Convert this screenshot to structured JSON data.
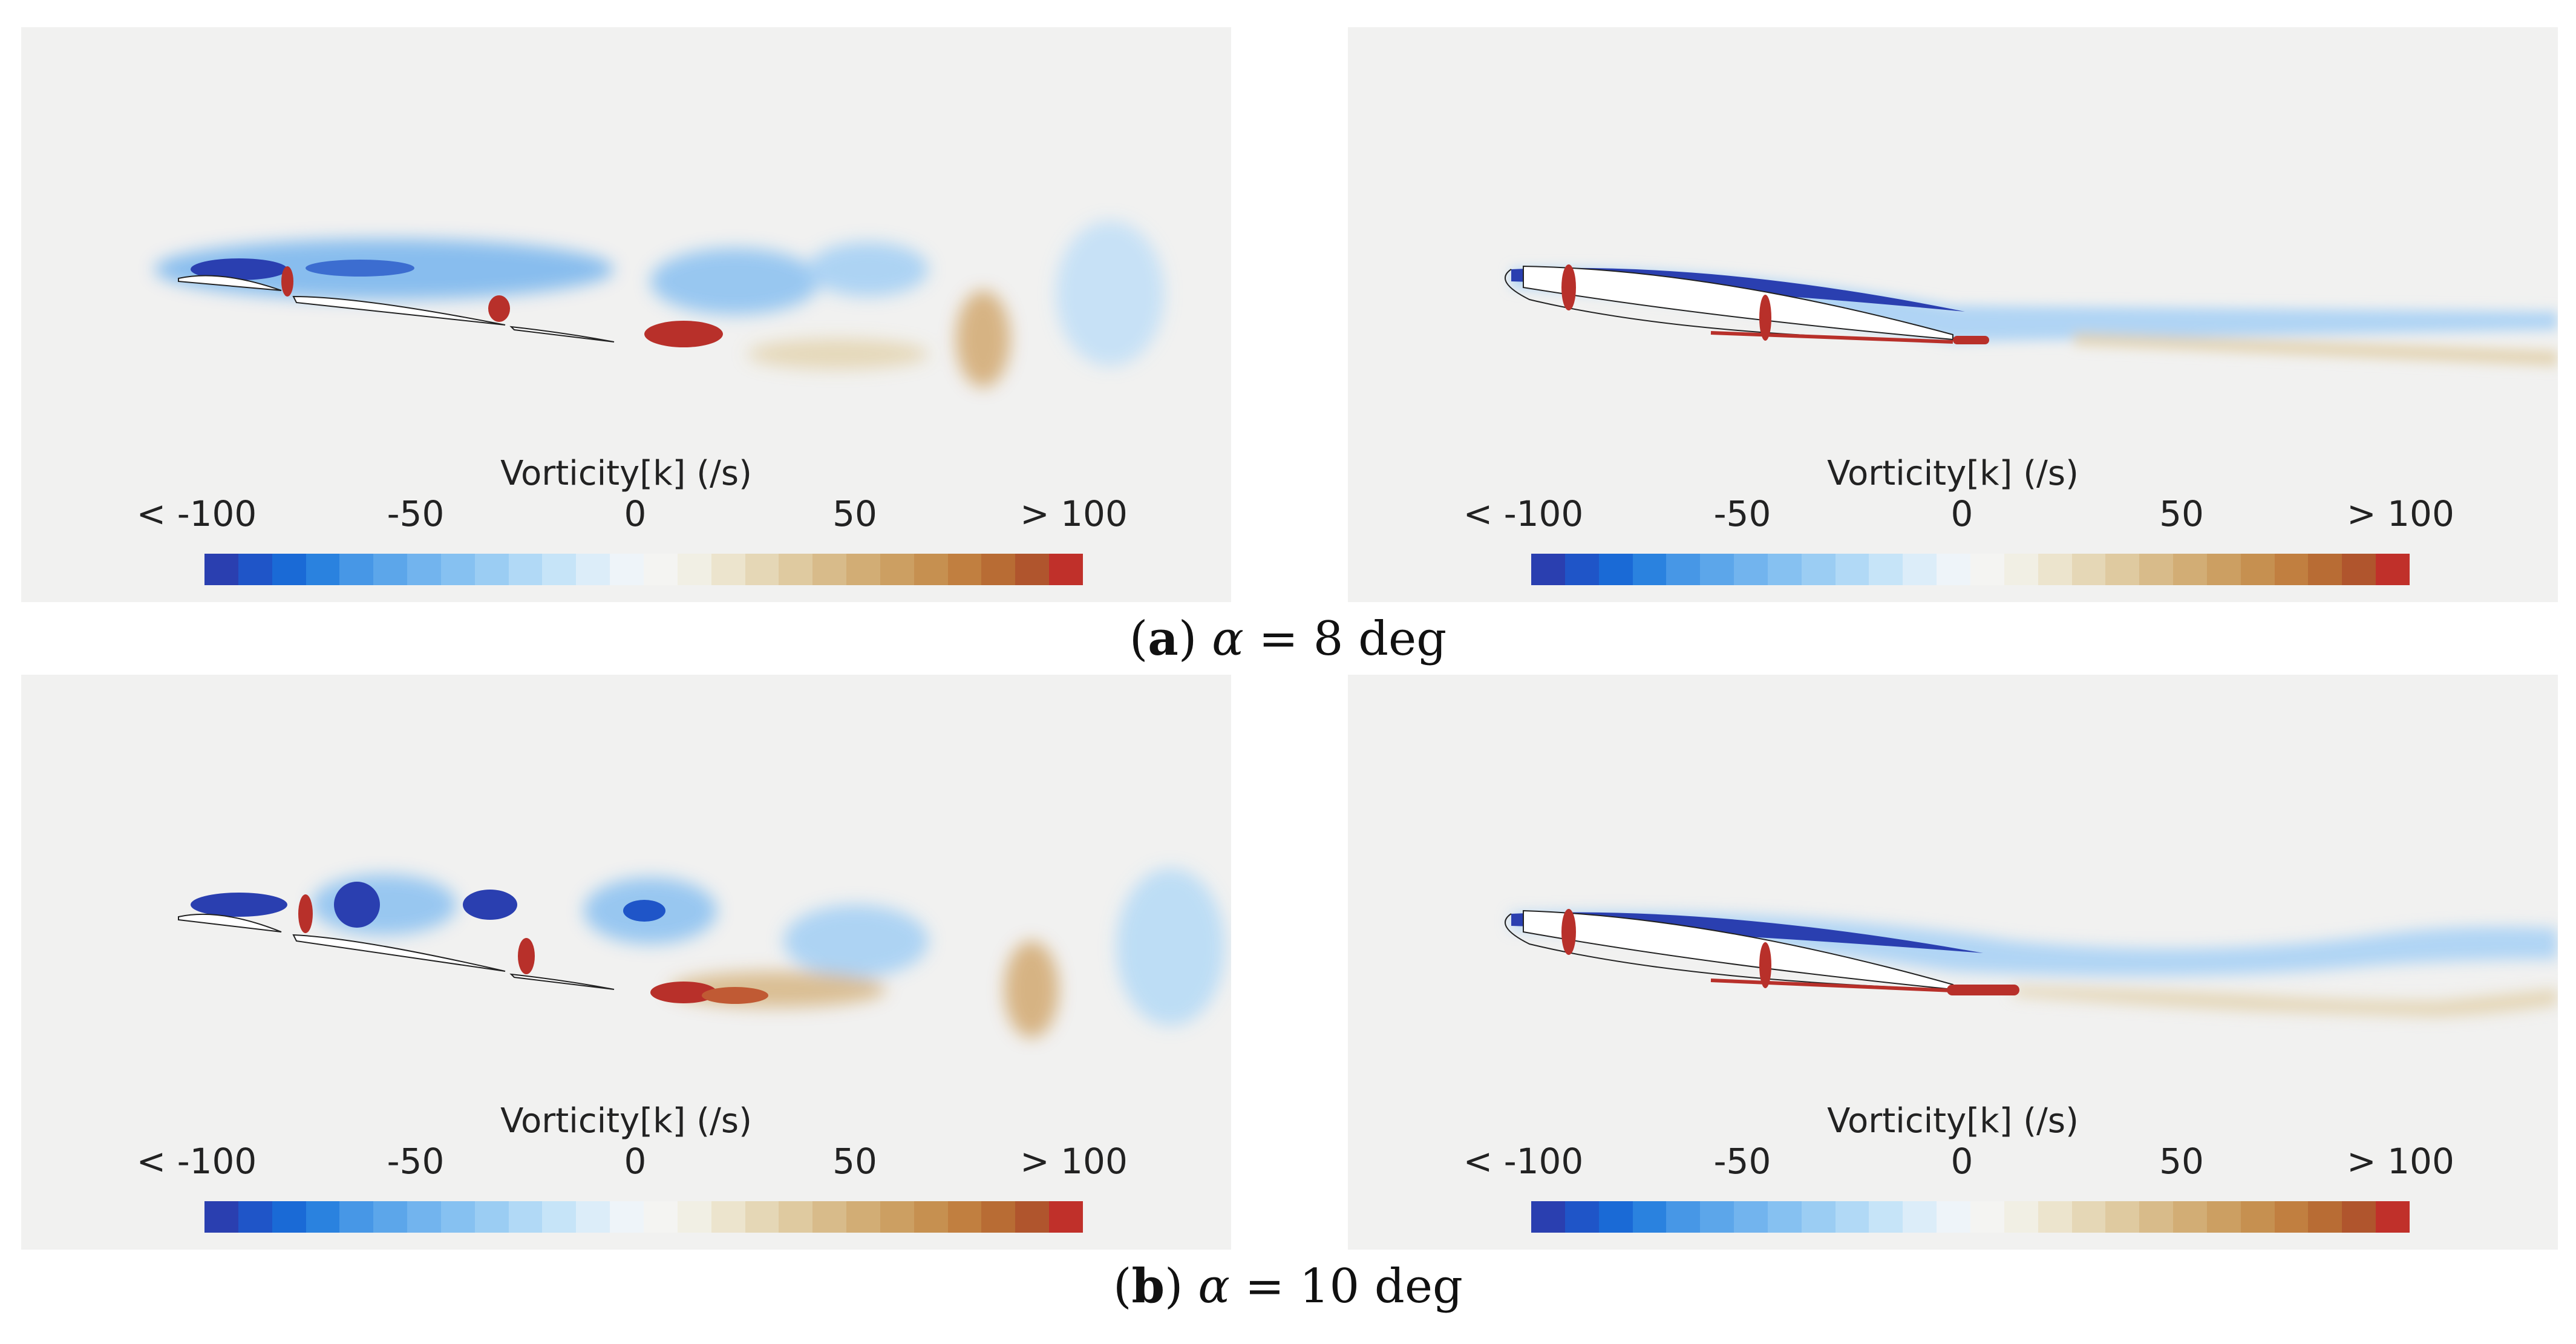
{
  "colorbar": {
    "title": "Vorticity[k] (/s)",
    "ticks": [
      "< -100",
      "-50",
      "0",
      "50",
      "> 100"
    ],
    "colors": [
      "#2a3fb0",
      "#1f55c8",
      "#1a6ad6",
      "#2a82df",
      "#4797e6",
      "#5ca6ea",
      "#72b4ee",
      "#86c1f1",
      "#9bcdf3",
      "#b1d9f6",
      "#c6e4f8",
      "#dcedf9",
      "#eef4f9",
      "#f4f4f2",
      "#f1efe4",
      "#ece4cd",
      "#e5d7b6",
      "#dfcaa0",
      "#d8bb8a",
      "#d2ad75",
      "#cc9f62",
      "#c69050",
      "#c17f40",
      "#b86c34",
      "#b0552d",
      "#c0302a"
    ]
  },
  "figure": {
    "captions": [
      {
        "label": "(",
        "letter": "a",
        "rest": ") ",
        "symbol": "α",
        "value": " = 8 deg"
      },
      {
        "label": "(",
        "letter": "b",
        "rest": ") ",
        "symbol": "α",
        "value": " = 10 deg"
      }
    ]
  }
}
